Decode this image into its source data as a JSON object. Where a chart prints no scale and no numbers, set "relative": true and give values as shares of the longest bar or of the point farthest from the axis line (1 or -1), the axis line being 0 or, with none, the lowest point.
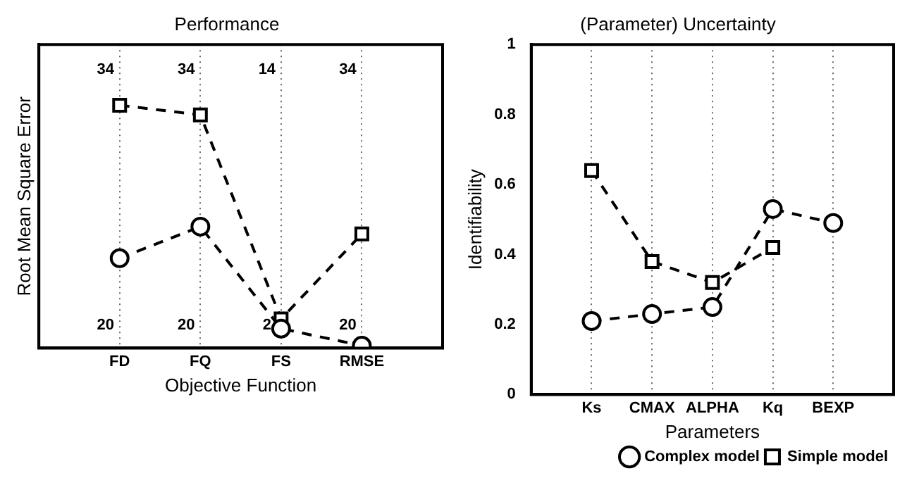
{
  "chart_data": [
    {
      "type": "line",
      "title": "Performance",
      "xlabel": "Objective Function",
      "ylabel": "Root Mean Square Error",
      "categories": [
        "FD",
        "FQ",
        "FS",
        "RMSE"
      ],
      "relative": true,
      "grid": "x",
      "line_style": "dashed",
      "series": [
        {
          "color": "#000000",
          "marker": "circle",
          "values": [
            0.37,
            0.5,
            0.08,
            0.01
          ]
        },
        {
          "color": "#000000",
          "marker": "square",
          "values": [
            1,
            0.96,
            0.12,
            0.47
          ]
        }
      ],
      "annotations": [
        "34",
        "34",
        "14",
        "34",
        "20",
        "20",
        "2",
        "20"
      ]
    },
    {
      "type": "line",
      "title": "(Parameter) Uncertainty",
      "xlabel": "Parameters",
      "ylabel": "Identifiability",
      "categories": [
        "Ks",
        "CMAX",
        "ALPHA",
        "Kq",
        "BEXP"
      ],
      "ylim": [
        0,
        1
      ],
      "yticks": [
        0,
        0.2,
        0.4,
        0.6,
        0.8,
        1
      ],
      "grid": "x",
      "line_style": "dashed",
      "legend": "bottom right",
      "series": [
        {
          "name": "Complex model",
          "color": "#000000",
          "marker": "circle",
          "values": [
            0.21,
            0.23,
            0.25,
            0.53,
            0.49
          ]
        },
        {
          "name": "Simple model",
          "color": "#000000",
          "marker": "square",
          "values": [
            0.64,
            0.38,
            0.32,
            0.42,
            null
          ]
        }
      ]
    }
  ]
}
